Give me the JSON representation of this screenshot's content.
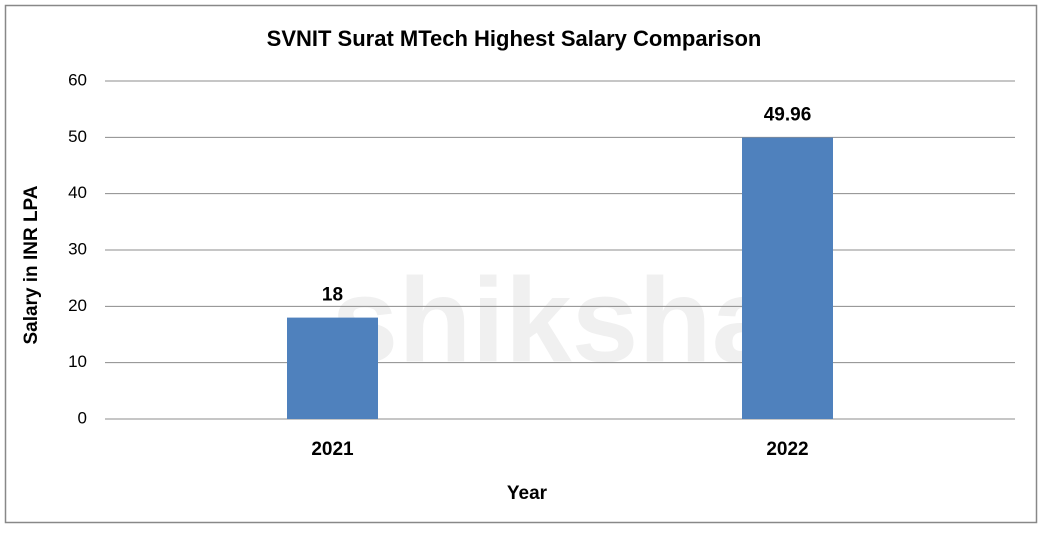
{
  "chart_data": {
    "type": "bar",
    "title": "SVNIT Surat MTech Highest Salary Comparison",
    "x_label": "Year",
    "y_label": "Salary in INR LPA",
    "watermark": "shiksha",
    "categories": [
      "2021",
      "2022"
    ],
    "values": [
      18,
      49.96
    ],
    "color": "#4f81bd",
    "ylim": [
      0,
      60
    ],
    "yticks": [
      0,
      10,
      20,
      30,
      40,
      50,
      60
    ],
    "grid": true
  }
}
